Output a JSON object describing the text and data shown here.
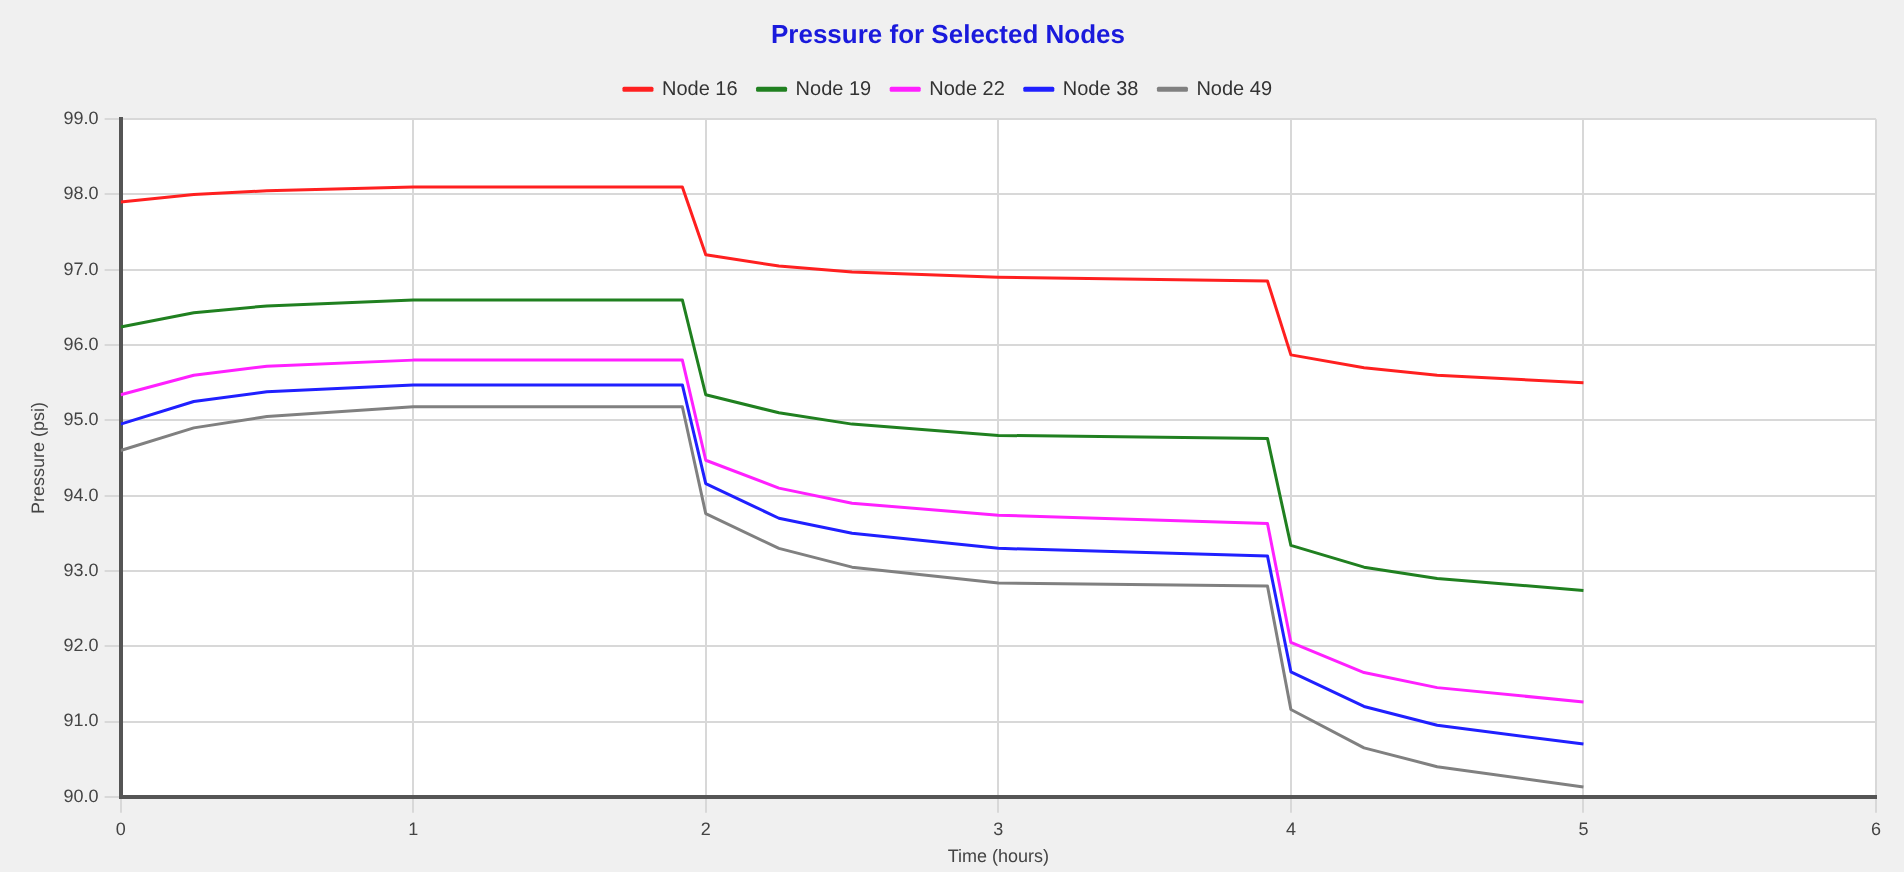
{
  "chart_data": {
    "type": "line",
    "title": "Pressure for Selected Nodes",
    "xlabel": "Time (hours)",
    "ylabel": "Pressure (psi)",
    "x": [
      0,
      0.25,
      0.5,
      1,
      1.92,
      2,
      2.25,
      2.5,
      3,
      3.92,
      4,
      4.25,
      4.5,
      5
    ],
    "series": [
      {
        "name": "Node 16",
        "color": "#ff2020",
        "values": [
          97.9,
          98.0,
          98.05,
          98.1,
          98.1,
          97.2,
          97.05,
          96.97,
          96.9,
          96.85,
          95.87,
          95.7,
          95.6,
          95.5
        ]
      },
      {
        "name": "Node 19",
        "color": "#208020",
        "values": [
          96.24,
          96.43,
          96.52,
          96.6,
          96.6,
          95.34,
          95.1,
          94.95,
          94.8,
          94.76,
          93.34,
          93.05,
          92.9,
          92.74
        ]
      },
      {
        "name": "Node 22",
        "color": "#ff20ff",
        "values": [
          95.34,
          95.6,
          95.72,
          95.8,
          95.8,
          94.47,
          94.1,
          93.9,
          93.74,
          93.63,
          92.05,
          91.65,
          91.45,
          91.26
        ]
      },
      {
        "name": "Node 38",
        "color": "#2020ff",
        "values": [
          94.95,
          95.25,
          95.38,
          95.47,
          95.47,
          94.16,
          93.7,
          93.5,
          93.3,
          93.2,
          91.66,
          91.2,
          90.95,
          90.7
        ]
      },
      {
        "name": "Node 49",
        "color": "#808080",
        "values": [
          94.6,
          94.9,
          95.05,
          95.18,
          95.18,
          93.76,
          93.3,
          93.05,
          92.84,
          92.8,
          91.16,
          90.65,
          90.4,
          90.13
        ]
      }
    ],
    "xlim": [
      0,
      6
    ],
    "xticks": [
      0,
      1,
      2,
      3,
      4,
      5,
      6
    ],
    "ylim": [
      90,
      99
    ],
    "yticks": [
      {
        "value": 90,
        "label": "90.0"
      },
      {
        "value": 91,
        "label": "91.0"
      },
      {
        "value": 92,
        "label": "92.0"
      },
      {
        "value": 93,
        "label": "93.0"
      },
      {
        "value": 94,
        "label": "94.0"
      },
      {
        "value": 95,
        "label": "95.0"
      },
      {
        "value": 96,
        "label": "96.0"
      },
      {
        "value": 97,
        "label": "97.0"
      },
      {
        "value": 98,
        "label": "98.0"
      },
      {
        "value": 99,
        "label": "99.0"
      }
    ],
    "grid": true,
    "legend": "top",
    "marker": "none",
    "line_style": "solid"
  }
}
